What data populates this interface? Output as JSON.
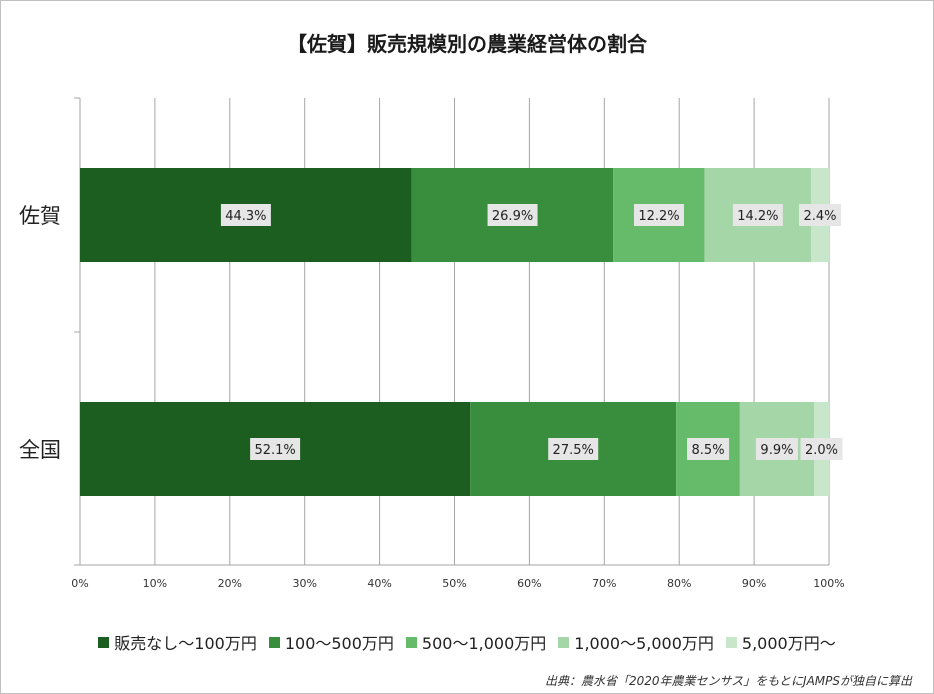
{
  "title": "【佐賀】販売規模別の農業経営体の割合",
  "source": "出典：農水省「2020年農業センサス」をもとにJAMPSが独自に算出",
  "chart_data": {
    "type": "bar",
    "orientation": "horizontal",
    "stacked": "percent",
    "categories": [
      "佐賀",
      "全国"
    ],
    "series": [
      {
        "name": "販売なし〜100万円",
        "values": [
          44.3,
          52.1
        ],
        "labels": [
          "44.3%",
          "52.1%"
        ],
        "color": "#1b5e20"
      },
      {
        "name": "100〜500万円",
        "values": [
          26.9,
          27.5
        ],
        "labels": [
          "26.9%",
          "27.5%"
        ],
        "color": "#388e3c"
      },
      {
        "name": "500〜1,000万円",
        "values": [
          12.2,
          8.5
        ],
        "labels": [
          "12.2%",
          "8.5%"
        ],
        "color": "#66bb6a"
      },
      {
        "name": "1,000〜5,000万円",
        "values": [
          14.2,
          9.9
        ],
        "labels": [
          "14.2%",
          "9.9%"
        ],
        "color": "#a5d6a7"
      },
      {
        "name": "5,000万円〜",
        "values": [
          2.4,
          2.0
        ],
        "labels": [
          "2.4%",
          "2.0%"
        ],
        "color": "#c8e6c9"
      }
    ],
    "xlim": [
      0,
      100
    ],
    "xticks": [
      "0%",
      "10%",
      "20%",
      "30%",
      "40%",
      "50%",
      "60%",
      "70%",
      "80%",
      "90%",
      "100%"
    ],
    "grid": true,
    "legend": "bottom"
  }
}
